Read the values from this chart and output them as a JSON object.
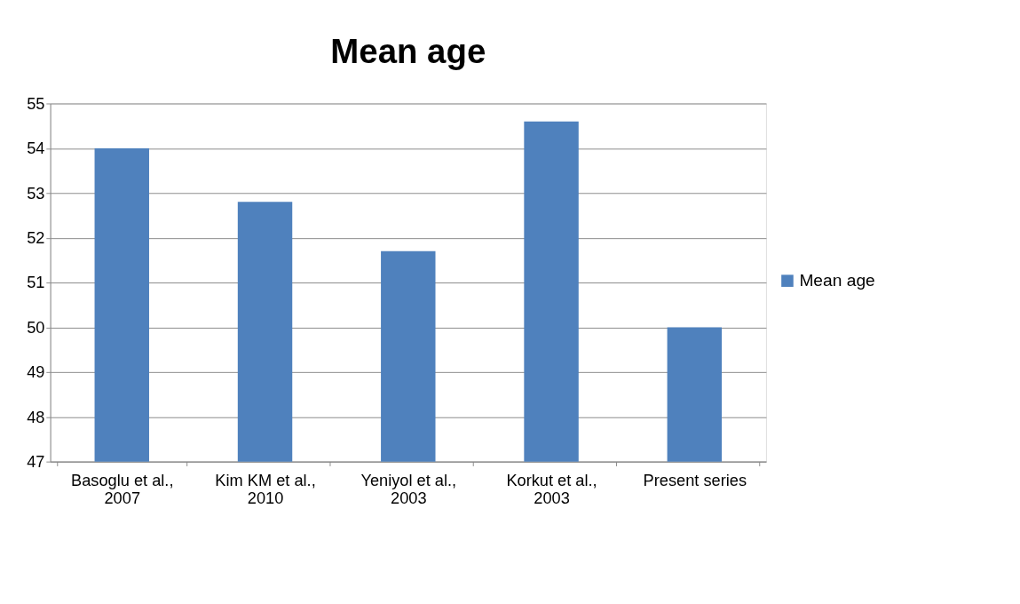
{
  "chart_data": {
    "type": "bar",
    "title": "Mean age",
    "categories": [
      "Basoglu et al., 2007",
      "Kim KM et al., 2010",
      "Yeniyol et al., 2003",
      "Korkut et al., 2003",
      "Present series"
    ],
    "series": [
      {
        "name": "Mean age",
        "color": "#4f81bd",
        "values": [
          54,
          52.8,
          51.7,
          54.6,
          50
        ]
      }
    ],
    "ylim": [
      47,
      55
    ],
    "yticks": [
      47,
      48,
      49,
      50,
      51,
      52,
      53,
      54,
      55
    ],
    "grid": "y",
    "legend": "right"
  }
}
